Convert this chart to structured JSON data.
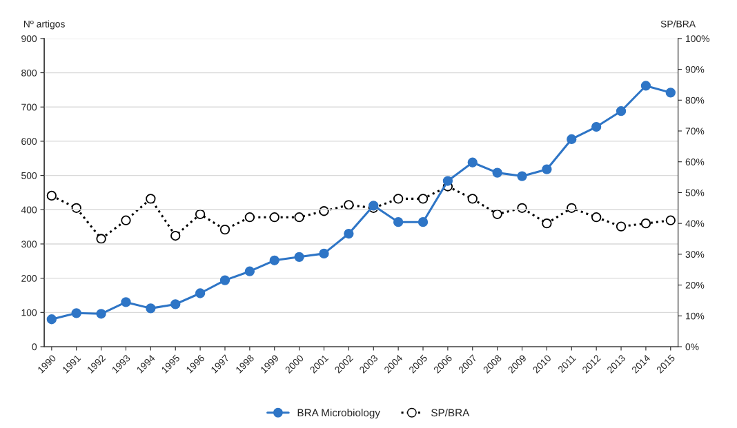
{
  "chart_data": {
    "type": "line",
    "categories": [
      "1990",
      "1991",
      "1992",
      "1993",
      "1994",
      "1995",
      "1996",
      "1997",
      "1998",
      "1999",
      "2000",
      "2001",
      "2002",
      "2003",
      "2004",
      "2005",
      "2006",
      "2007",
      "2008",
      "2009",
      "2010",
      "2011",
      "2012",
      "2013",
      "2014",
      "2015"
    ],
    "series": [
      {
        "name": "BRA Microbiology",
        "color": "#2e75c6",
        "marker": "circle",
        "line_style": "solid",
        "values": [
          80,
          98,
          96,
          130,
          112,
          124,
          156,
          194,
          220,
          252,
          262,
          272,
          330,
          412,
          364,
          364,
          484,
          538,
          508,
          498,
          518,
          606,
          642,
          688,
          762,
          742
        ]
      },
      {
        "name": "SP/BRA",
        "color": "#000000",
        "marker": "circle",
        "line_style": "dotted",
        "axis": "y2",
        "values": [
          49,
          45,
          35,
          41,
          48,
          36,
          43,
          38,
          42,
          42,
          42,
          44,
          46,
          45,
          48,
          48,
          52,
          48,
          43,
          45,
          40,
          45,
          42,
          39,
          40,
          41
        ]
      }
    ],
    "ylabel": "Nº artigos",
    "y2label": "SP/BRA",
    "ylim": [
      0,
      900
    ],
    "yticks": [
      0,
      100,
      200,
      300,
      400,
      500,
      600,
      700,
      800,
      900
    ],
    "y2lim": [
      0,
      100
    ],
    "y2ticks": [
      {
        "value": 0,
        "label": "0%"
      },
      {
        "value": 10,
        "label": "10%"
      },
      {
        "value": 20,
        "label": "20%"
      },
      {
        "value": 30,
        "label": "30%"
      },
      {
        "value": 40,
        "label": "40%"
      },
      {
        "value": 50,
        "label": "50%"
      },
      {
        "value": 60,
        "label": "60%"
      },
      {
        "value": 70,
        "label": "70%"
      },
      {
        "value": 80,
        "label": "80%"
      },
      {
        "value": 90,
        "label": "90%"
      },
      {
        "value": 100,
        "label": "100%"
      }
    ],
    "grid": "y",
    "legend": "bottom"
  }
}
